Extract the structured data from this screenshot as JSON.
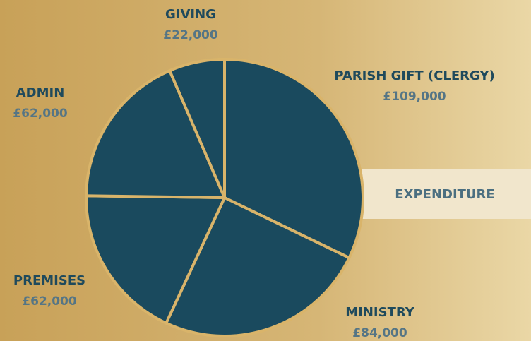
{
  "chart_data": {
    "type": "pie",
    "title": "EXPENDITURE",
    "categories": [
      "PARISH GIFT (CLERGY)",
      "MINISTRY",
      "PREMISES",
      "ADMIN",
      "GIVING"
    ],
    "values": [
      109000,
      84000,
      62000,
      62000,
      22000
    ],
    "value_labels": [
      "£109,000",
      "£84,000",
      "£62,000",
      "£62,000",
      "£22,000"
    ],
    "color": "#1a4a5e"
  }
}
